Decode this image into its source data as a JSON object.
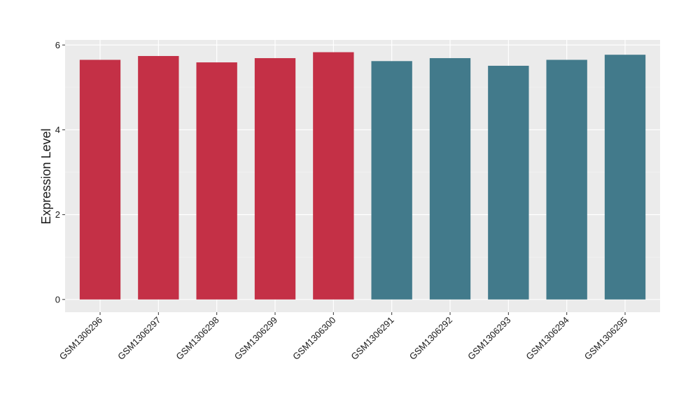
{
  "chart_data": {
    "type": "bar",
    "y_label": "Expression Level",
    "categories": [
      "GSM1306296",
      "GSM1306297",
      "GSM1306298",
      "GSM1306299",
      "GSM1306300",
      "GSM1306291",
      "GSM1306292",
      "GSM1306293",
      "GSM1306294",
      "GSM1306295"
    ],
    "values": [
      5.65,
      5.74,
      5.59,
      5.69,
      5.83,
      5.62,
      5.69,
      5.51,
      5.65,
      5.77
    ],
    "colors": [
      "#c43046",
      "#c43046",
      "#c43046",
      "#c43046",
      "#c43046",
      "#427a8b",
      "#427a8b",
      "#427a8b",
      "#427a8b",
      "#427a8b"
    ],
    "ylim": [
      -0.3,
      6.12
    ],
    "yticks": [
      0,
      2,
      4,
      6
    ],
    "yminorticks": [
      1,
      3,
      5
    ],
    "grid": true
  }
}
